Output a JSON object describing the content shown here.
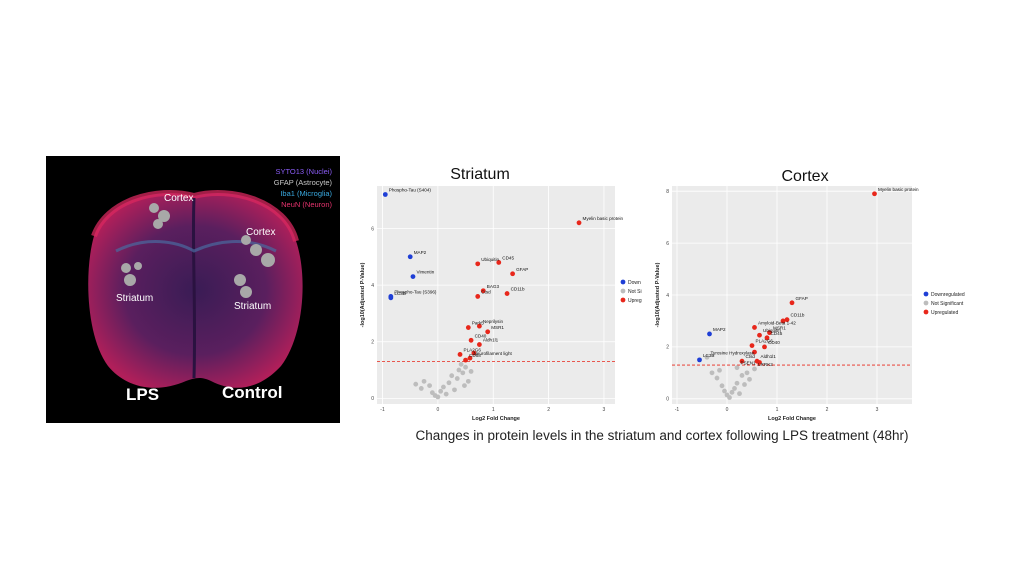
{
  "brain_image": {
    "legend": [
      {
        "text": "SYTO13 (Nuclei)",
        "color": "#8a5cf5"
      },
      {
        "text": "GFAP (Astrocyte)",
        "color": "#c8c8c8"
      },
      {
        "text": "Iba1 (Microglia)",
        "color": "#39a9e0"
      },
      {
        "text": "NeuN (Neuron)",
        "color": "#e8336e"
      }
    ],
    "regions": [
      "Cortex",
      "Cortex",
      "Striatum",
      "Striatum"
    ],
    "conditions": [
      "LPS",
      "Control"
    ]
  },
  "caption": "Changes in protein levels in the striatum and cortex following  LPS treatment (48hr)",
  "colors": {
    "down": "#1f3fd6",
    "notsig": "#bdbdbd",
    "up": "#e8271b",
    "threshold": "#e8271b",
    "panel": "#ebebeb"
  },
  "chart_data": [
    {
      "type": "scatter",
      "title": "Striatum",
      "xlabel": "Log2 Fold Change",
      "ylabel": "-log10(Adjusted P-Value)",
      "xlim": [
        -1.1,
        3.2
      ],
      "ylim": [
        -0.2,
        7.5
      ],
      "xticks": [
        -1,
        0,
        1,
        2,
        3
      ],
      "yticks": [
        0,
        2,
        4,
        6
      ],
      "threshold": 1.3,
      "grid": true,
      "legend": {
        "placement": "right",
        "entries": [
          {
            "label": "Down",
            "group": "down"
          },
          {
            "label": "Not Si",
            "group": "notsig"
          },
          {
            "label": "Upreg",
            "group": "up"
          }
        ]
      },
      "points": [
        {
          "x": -0.95,
          "y": 7.2,
          "group": "down",
          "label": "Phospho-Tau (S404)"
        },
        {
          "x": -0.5,
          "y": 5.0,
          "group": "down",
          "label": "MAP2"
        },
        {
          "x": -0.45,
          "y": 4.3,
          "group": "down",
          "label": "Vimentin"
        },
        {
          "x": -0.85,
          "y": 3.6,
          "group": "down",
          "label": "Phospho-Tau (S396)"
        },
        {
          "x": -0.85,
          "y": 3.55,
          "group": "down",
          "label": "LC3B"
        },
        {
          "x": 2.55,
          "y": 6.2,
          "group": "up",
          "label": "Myelin basic protein"
        },
        {
          "x": 1.1,
          "y": 4.8,
          "group": "up",
          "label": "CD45"
        },
        {
          "x": 0.72,
          "y": 4.75,
          "group": "up",
          "label": "Ubiquitin"
        },
        {
          "x": 1.35,
          "y": 4.4,
          "group": "up",
          "label": "GFAP"
        },
        {
          "x": 0.82,
          "y": 3.8,
          "group": "up",
          "label": "BAG3"
        },
        {
          "x": 1.25,
          "y": 3.7,
          "group": "up",
          "label": "CD11b"
        },
        {
          "x": 0.72,
          "y": 3.6,
          "group": "up",
          "label": "Ctsd"
        },
        {
          "x": 0.75,
          "y": 2.55,
          "group": "up",
          "label": "Neprilysin"
        },
        {
          "x": 0.55,
          "y": 2.5,
          "group": "up",
          "label": "Park5"
        },
        {
          "x": 0.9,
          "y": 2.35,
          "group": "up",
          "label": "MSR1"
        },
        {
          "x": 0.6,
          "y": 2.05,
          "group": "up",
          "label": "CD40"
        },
        {
          "x": 0.75,
          "y": 1.9,
          "group": "up",
          "label": "Aldh1l1"
        },
        {
          "x": 0.4,
          "y": 1.55,
          "group": "up",
          "label": "PLA2G6"
        },
        {
          "x": 0.65,
          "y": 1.6,
          "group": "up",
          "label": ""
        },
        {
          "x": 0.58,
          "y": 1.42,
          "group": "up",
          "label": "Neurofilament light"
        },
        {
          "x": 0.5,
          "y": 1.35,
          "group": "up",
          "label": "CD68"
        },
        {
          "x": -0.4,
          "y": 0.5,
          "group": "notsig",
          "label": ""
        },
        {
          "x": -0.3,
          "y": 0.35,
          "group": "notsig",
          "label": ""
        },
        {
          "x": -0.25,
          "y": 0.6,
          "group": "notsig",
          "label": ""
        },
        {
          "x": -0.15,
          "y": 0.45,
          "group": "notsig",
          "label": ""
        },
        {
          "x": -0.1,
          "y": 0.2,
          "group": "notsig",
          "label": ""
        },
        {
          "x": -0.05,
          "y": 0.1,
          "group": "notsig",
          "label": ""
        },
        {
          "x": 0.0,
          "y": 0.05,
          "group": "notsig",
          "label": ""
        },
        {
          "x": 0.05,
          "y": 0.25,
          "group": "notsig",
          "label": ""
        },
        {
          "x": 0.1,
          "y": 0.4,
          "group": "notsig",
          "label": ""
        },
        {
          "x": 0.15,
          "y": 0.15,
          "group": "notsig",
          "label": ""
        },
        {
          "x": 0.2,
          "y": 0.55,
          "group": "notsig",
          "label": ""
        },
        {
          "x": 0.25,
          "y": 0.8,
          "group": "notsig",
          "label": ""
        },
        {
          "x": 0.3,
          "y": 0.3,
          "group": "notsig",
          "label": ""
        },
        {
          "x": 0.35,
          "y": 0.7,
          "group": "notsig",
          "label": ""
        },
        {
          "x": 0.38,
          "y": 1.0,
          "group": "notsig",
          "label": ""
        },
        {
          "x": 0.42,
          "y": 1.2,
          "group": "notsig",
          "label": ""
        },
        {
          "x": 0.45,
          "y": 0.9,
          "group": "notsig",
          "label": ""
        },
        {
          "x": 0.5,
          "y": 1.1,
          "group": "notsig",
          "label": ""
        },
        {
          "x": 0.55,
          "y": 0.6,
          "group": "notsig",
          "label": ""
        },
        {
          "x": 0.6,
          "y": 0.95,
          "group": "notsig",
          "label": ""
        },
        {
          "x": 0.48,
          "y": 0.45,
          "group": "notsig",
          "label": ""
        }
      ]
    },
    {
      "type": "scatter",
      "title": "Cortex",
      "xlabel": "Log2 Fold Change",
      "ylabel": "-log10(Adjusted P-Value)",
      "xlim": [
        -1.1,
        3.7
      ],
      "ylim": [
        -0.2,
        8.2
      ],
      "xticks": [
        -1,
        0,
        1,
        2,
        3
      ],
      "yticks": [
        0,
        2,
        4,
        6,
        8
      ],
      "threshold": 1.3,
      "grid": true,
      "legend": {
        "placement": "right",
        "entries": [
          {
            "label": "Downregulated",
            "group": "down"
          },
          {
            "label": "Not Significant",
            "group": "notsig"
          },
          {
            "label": "Upregulated",
            "group": "up"
          }
        ]
      },
      "points": [
        {
          "x": 2.95,
          "y": 7.9,
          "group": "up",
          "label": "Myelin basic protein"
        },
        {
          "x": 1.3,
          "y": 3.7,
          "group": "up",
          "label": "GFAP"
        },
        {
          "x": 1.2,
          "y": 3.05,
          "group": "up",
          "label": "CD11b"
        },
        {
          "x": 1.12,
          "y": 3.0,
          "group": "up",
          "label": ""
        },
        {
          "x": 0.55,
          "y": 2.75,
          "group": "up",
          "label": "Amyloid-Beta 1-42"
        },
        {
          "x": 0.85,
          "y": 2.55,
          "group": "up",
          "label": "MSR1"
        },
        {
          "x": 0.65,
          "y": 2.45,
          "group": "up",
          "label": "Ubiquitin"
        },
        {
          "x": 0.8,
          "y": 2.35,
          "group": "up",
          "label": "CD45"
        },
        {
          "x": 0.5,
          "y": 2.05,
          "group": "up",
          "label": "PLA2G6"
        },
        {
          "x": 0.75,
          "y": 2.0,
          "group": "up",
          "label": "CD40"
        },
        {
          "x": 0.55,
          "y": 1.8,
          "group": "up",
          "label": ""
        },
        {
          "x": 0.3,
          "y": 1.45,
          "group": "up",
          "label": "Ctsd"
        },
        {
          "x": 0.6,
          "y": 1.45,
          "group": "up",
          "label": "Aldh1l1"
        },
        {
          "x": 0.65,
          "y": 1.4,
          "group": "up",
          "label": ""
        },
        {
          "x": -0.35,
          "y": 2.5,
          "group": "down",
          "label": "MAP2"
        },
        {
          "x": -0.55,
          "y": 1.5,
          "group": "down",
          "label": "LC3B"
        },
        {
          "x": -0.4,
          "y": 1.6,
          "group": "notsig",
          "label": "Tyrosine Hydroxylase"
        },
        {
          "x": 0.2,
          "y": 1.2,
          "group": "notsig",
          "label": "PSEN1"
        },
        {
          "x": 0.55,
          "y": 1.15,
          "group": "notsig",
          "label": "LRRK2"
        },
        {
          "x": -0.2,
          "y": 0.8,
          "group": "notsig",
          "label": ""
        },
        {
          "x": -0.1,
          "y": 0.5,
          "group": "notsig",
          "label": ""
        },
        {
          "x": -0.05,
          "y": 0.3,
          "group": "notsig",
          "label": ""
        },
        {
          "x": 0.0,
          "y": 0.15,
          "group": "notsig",
          "label": ""
        },
        {
          "x": 0.05,
          "y": 0.05,
          "group": "notsig",
          "label": ""
        },
        {
          "x": 0.1,
          "y": 0.25,
          "group": "notsig",
          "label": ""
        },
        {
          "x": 0.15,
          "y": 0.4,
          "group": "notsig",
          "label": ""
        },
        {
          "x": 0.2,
          "y": 0.6,
          "group": "notsig",
          "label": ""
        },
        {
          "x": 0.25,
          "y": 0.2,
          "group": "notsig",
          "label": ""
        },
        {
          "x": 0.3,
          "y": 0.9,
          "group": "notsig",
          "label": ""
        },
        {
          "x": 0.35,
          "y": 0.55,
          "group": "notsig",
          "label": ""
        },
        {
          "x": 0.4,
          "y": 1.0,
          "group": "notsig",
          "label": ""
        },
        {
          "x": -0.3,
          "y": 1.0,
          "group": "notsig",
          "label": ""
        },
        {
          "x": -0.15,
          "y": 1.1,
          "group": "notsig",
          "label": ""
        },
        {
          "x": 0.45,
          "y": 0.75,
          "group": "notsig",
          "label": ""
        }
      ]
    }
  ]
}
